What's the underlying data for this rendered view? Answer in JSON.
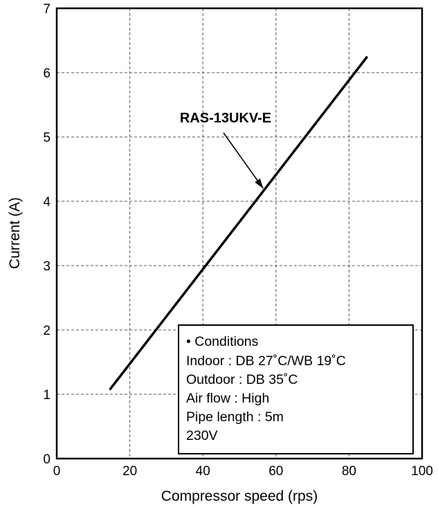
{
  "chart_data": {
    "type": "line",
    "title": "",
    "xlabel": "Compressor speed (rps)",
    "ylabel": "Current (A)",
    "xlim": [
      0,
      100
    ],
    "ylim": [
      0,
      7
    ],
    "x_ticks": [
      "0",
      "20",
      "40",
      "60",
      "80",
      "100"
    ],
    "y_ticks": [
      "0",
      "1",
      "2",
      "3",
      "4",
      "5",
      "6",
      "7"
    ],
    "grid": true,
    "series": [
      {
        "name": "RAS-13UKV-E",
        "x": [
          14.5,
          85
        ],
        "y": [
          1.07,
          6.25
        ]
      }
    ],
    "annotations": [
      {
        "text": "RAS-13UKV-E",
        "x": 56.5,
        "y": 4.2
      }
    ],
    "conditions_box": {
      "title": "• Conditions",
      "lines": [
        "Indoor : DB 27˚C/WB 19˚C",
        "Outdoor : DB 35˚C",
        "Air flow : High",
        "Pipe length : 5m",
        "230V"
      ]
    },
    "colors": {
      "line": "#000000",
      "grid": "#555555",
      "background": "#ffffff"
    }
  }
}
